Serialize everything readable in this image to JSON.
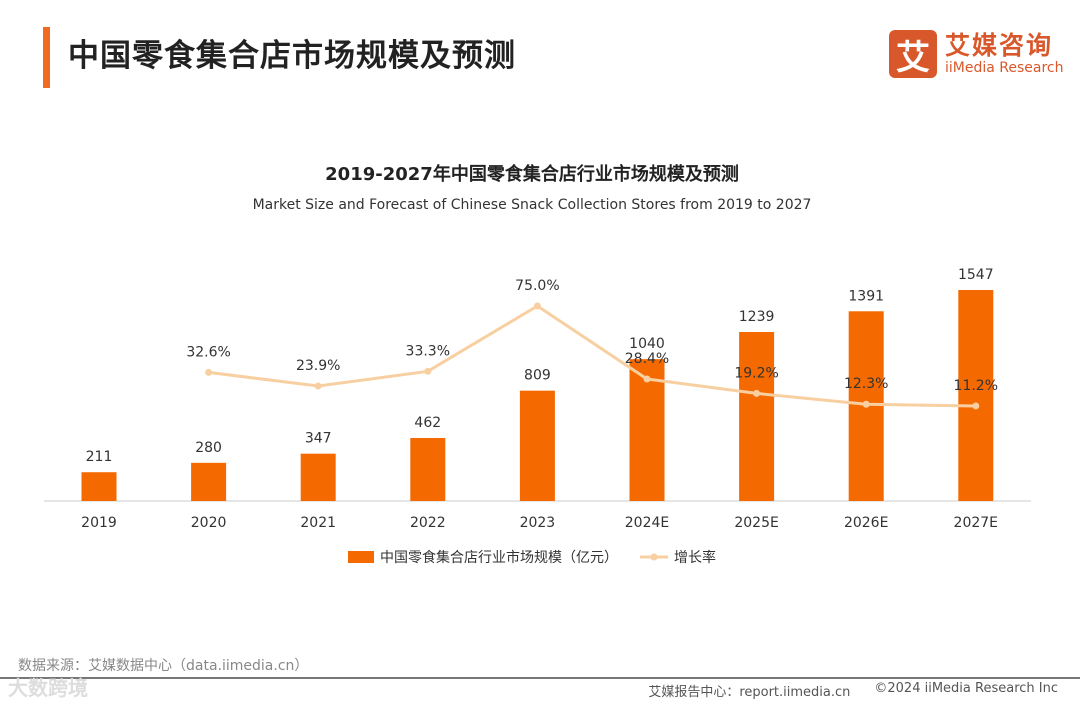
{
  "header": {
    "title": "中国零食集合店市场规模及预测"
  },
  "logo": {
    "mark": "艾",
    "cn": "艾媒咨询",
    "en": "iiMedia Research"
  },
  "footer": {
    "source": "数据来源：艾媒数据中心（data.iimedia.cn）",
    "watermark": "大数跨境",
    "report_center": "艾媒报告中心：report.iimedia.cn",
    "copyright": "©2024  iiMedia Research  Inc"
  },
  "colors": {
    "bar": "#f56a00",
    "line": "#f8cfa0",
    "accent": "#f06a21"
  },
  "chart_data": {
    "type": "bar+line",
    "title": "2019-2027年中国零食集合店行业市场规模及预测",
    "subtitle": "Market Size and Forecast of Chinese Snack Collection Stores from 2019 to 2027",
    "categories": [
      "2019",
      "2020",
      "2021",
      "2022",
      "2023",
      "2024E",
      "2025E",
      "2026E",
      "2027E"
    ],
    "series": [
      {
        "name": "中国零食集合店行业市场规模（亿元）",
        "type": "bar",
        "values": [
          211,
          280,
          347,
          462,
          809,
          1040,
          1239,
          1391,
          1547
        ]
      },
      {
        "name": "增长率",
        "type": "line",
        "unit": "%",
        "values": [
          null,
          32.6,
          23.9,
          33.3,
          75.0,
          28.4,
          19.2,
          12.3,
          11.2
        ]
      }
    ],
    "legend": "bottom-center",
    "grid": false
  }
}
